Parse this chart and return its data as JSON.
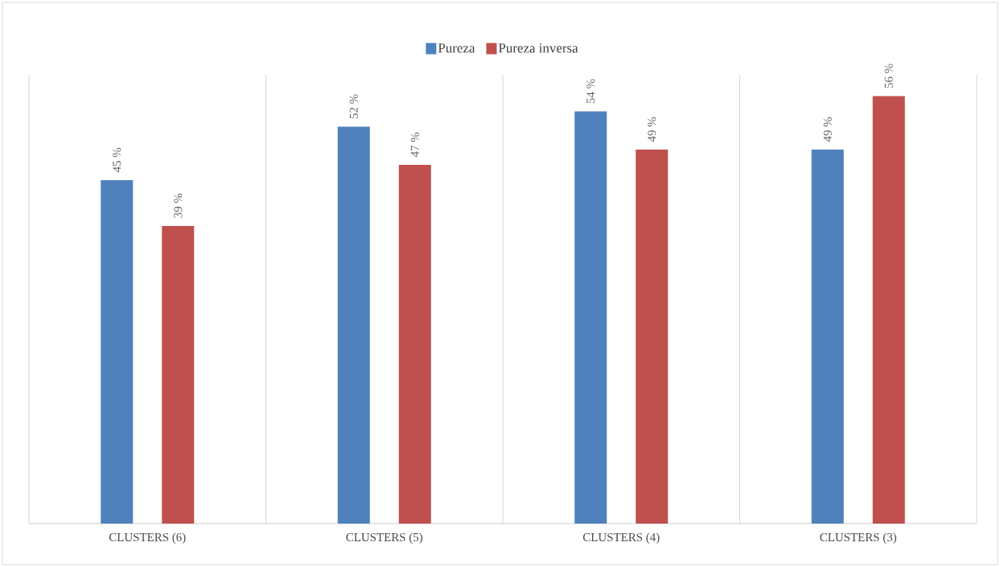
{
  "chart_data": {
    "type": "bar",
    "categories": [
      "CLUSTERS (6)",
      "CLUSTERS (5)",
      "CLUSTERS (4)",
      "CLUSTERS (3)"
    ],
    "series": [
      {
        "name": "Pureza",
        "color": "#4f81bd",
        "values": [
          45,
          52,
          54,
          49
        ],
        "value_labels": [
          "45 %",
          "52 %",
          "54 %",
          "49 %"
        ]
      },
      {
        "name": "Pureza inversa",
        "color": "#c0504d",
        "values": [
          39,
          47,
          49,
          56
        ],
        "value_labels": [
          "39 %",
          "47 %",
          "49 %",
          "56 %"
        ]
      }
    ],
    "legend": "top",
    "grid": "x"
  }
}
